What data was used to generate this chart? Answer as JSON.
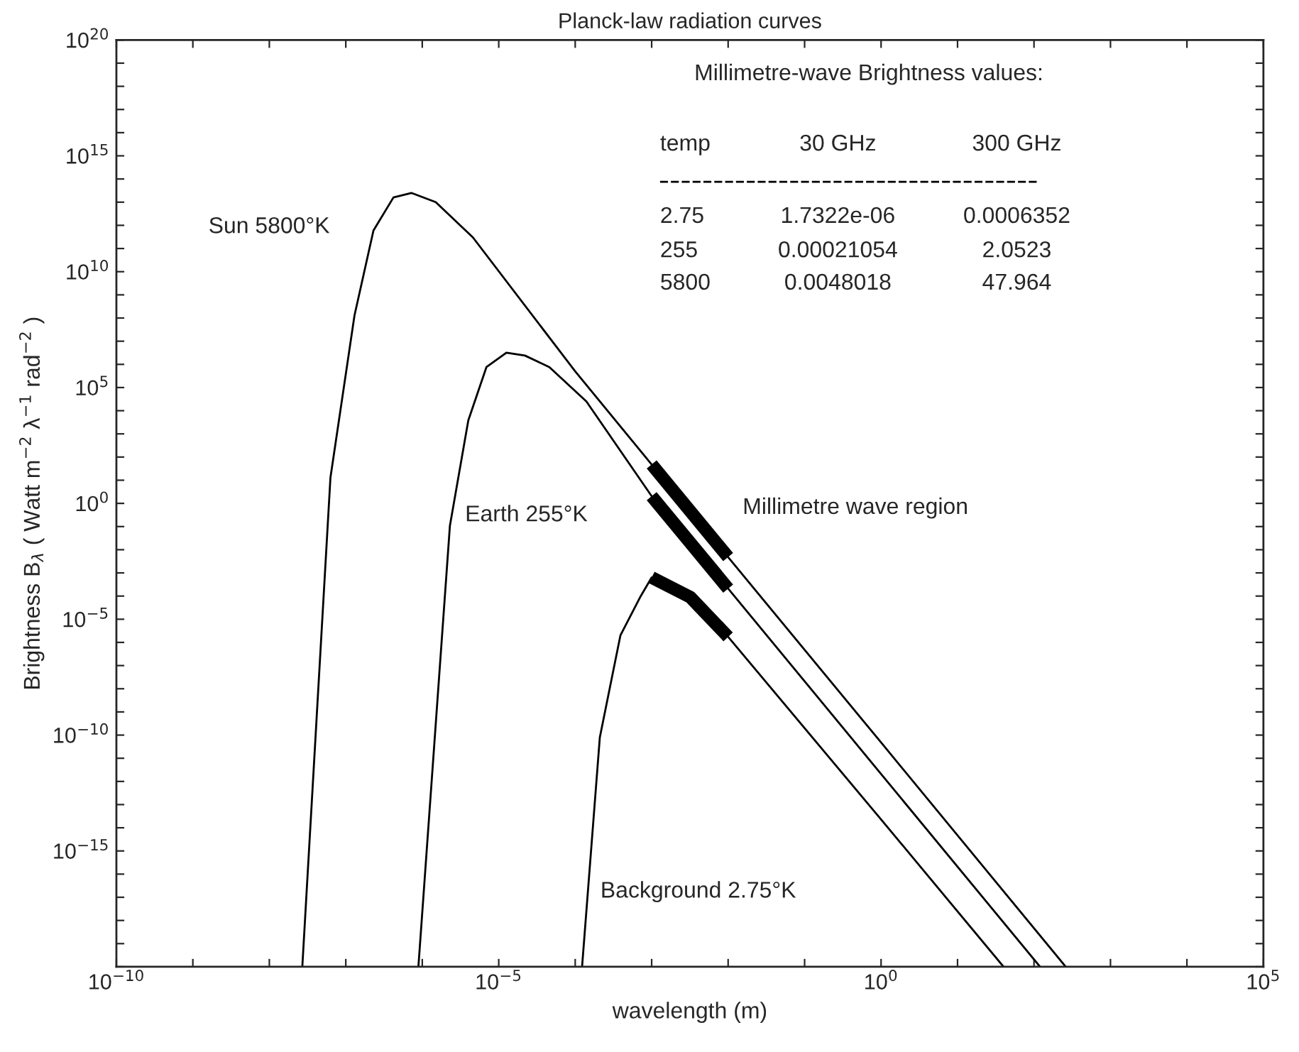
{
  "chart_data": {
    "type": "line",
    "title": "Planck-law radiation curves",
    "xlabel": "wavelength (m)",
    "ylabel": "Brightness B$_{λ}$ ( Watt m$^{−2}$ λ$^{−1}$ rad$^{−2}$ )",
    "log": "xy",
    "grid": false,
    "line_style": "solid",
    "marker": "none",
    "xlim": [
      1e-10,
      100000.0
    ],
    "ylim": [
      1e-20,
      1e+20
    ],
    "xticks": [
      {
        "value": 1e-10,
        "label": "10$^{−10}$"
      },
      {
        "value": 1e-09,
        "label": null
      },
      {
        "value": 1e-08,
        "label": null
      },
      {
        "value": 1e-07,
        "label": null
      },
      {
        "value": 1e-06,
        "label": null
      },
      {
        "value": 1e-05,
        "label": "10$^{−5}$"
      },
      {
        "value": 0.0001,
        "label": null
      },
      {
        "value": 0.001,
        "label": null
      },
      {
        "value": 0.01,
        "label": null
      },
      {
        "value": 0.1,
        "label": null
      },
      {
        "value": 1,
        "label": "10$^{0}$"
      },
      {
        "value": 10,
        "label": null
      },
      {
        "value": 100,
        "label": null
      },
      {
        "value": 1000,
        "label": null
      },
      {
        "value": 10000,
        "label": null
      },
      {
        "value": 100000,
        "label": "10$^{5}$"
      }
    ],
    "yticks": [
      {
        "value": 1e-20,
        "label": null
      },
      {
        "value": 1e-19,
        "label": null
      },
      {
        "value": 1e-18,
        "label": null
      },
      {
        "value": 1e-17,
        "label": null
      },
      {
        "value": 1e-16,
        "label": null
      },
      {
        "value": 1e-15,
        "label": "10$^{−15}$"
      },
      {
        "value": 1e-14,
        "label": null
      },
      {
        "value": 1e-13,
        "label": null
      },
      {
        "value": 1e-12,
        "label": null
      },
      {
        "value": 1e-11,
        "label": null
      },
      {
        "value": 1e-10,
        "label": "10$^{−10}$"
      },
      {
        "value": 1e-09,
        "label": null
      },
      {
        "value": 1e-08,
        "label": null
      },
      {
        "value": 1e-07,
        "label": null
      },
      {
        "value": 1e-06,
        "label": null
      },
      {
        "value": 1e-05,
        "label": "10$^{−5}$"
      },
      {
        "value": 0.0001,
        "label": null
      },
      {
        "value": 0.001,
        "label": null
      },
      {
        "value": 0.01,
        "label": null
      },
      {
        "value": 0.1,
        "label": null
      },
      {
        "value": 1,
        "label": "10$^{0}$"
      },
      {
        "value": 10,
        "label": null
      },
      {
        "value": 100,
        "label": null
      },
      {
        "value": 1000,
        "label": null
      },
      {
        "value": 10000,
        "label": null
      },
      {
        "value": 100000,
        "label": "10$^{5}$"
      },
      {
        "value": 1000000.0,
        "label": null
      },
      {
        "value": 10000000.0,
        "label": null
      },
      {
        "value": 100000000.0,
        "label": null
      },
      {
        "value": 1000000000.0,
        "label": null
      },
      {
        "value": 10000000000.0,
        "label": "10$^{10}$"
      },
      {
        "value": 100000000000.0,
        "label": null
      },
      {
        "value": 1000000000000.0,
        "label": null
      },
      {
        "value": 10000000000000.0,
        "label": null
      },
      {
        "value": 100000000000000.0,
        "label": null
      },
      {
        "value": 1000000000000000.0,
        "label": "10$^{15}$"
      },
      {
        "value": 1e+16,
        "label": null
      },
      {
        "value": 1e+17,
        "label": null
      },
      {
        "value": 1e+18,
        "label": null
      },
      {
        "value": 1e+19,
        "label": null
      },
      {
        "value": 1e+20,
        "label": "10$^{20}$"
      }
    ],
    "series": [
      {
        "name": "Sun 5800°K",
        "color": "#000000",
        "x": [
          2.7e-08,
          6.3e-08,
          1.3e-07,
          2.3e-07,
          4.2e-07,
          7.2e-07,
          1.5e-06,
          4.6e-06,
          0.0001,
          0.001,
          0.01,
          1,
          260
        ],
        "values": [
          1e-20,
          13,
          130000000.0,
          600000000000.0,
          16000000000000.0,
          25000000000000.0,
          10000000000000.0,
          300000000000.0,
          500000.0,
          47.964,
          0.0048018,
          4.8e-11,
          1e-20
        ]
      },
      {
        "name": "Earth 255°K",
        "color": "#000000",
        "x": [
          8.9e-07,
          2.3e-06,
          4e-06,
          6.9e-06,
          1.26e-05,
          2.2e-05,
          4.6e-05,
          0.00014,
          0.001,
          0.01,
          1,
          120
        ],
        "values": [
          1e-20,
          0.11,
          3800,
          760000.0,
          3200000.0,
          2400000.0,
          760000.0,
          25000.0,
          2.0523,
          0.00021054,
          2.1e-12,
          1e-20
        ]
      },
      {
        "name": "Background 2.75°K",
        "color": "#000000",
        "x": [
          0.000123,
          0.00021,
          0.00039,
          0.00072,
          0.001,
          0.0032,
          0.01,
          1,
          40
        ],
        "values": [
          1e-20,
          8e-11,
          2e-06,
          0.0001,
          0.0006352,
          9e-05,
          1.7322e-06,
          2.3e-14,
          1e-20
        ]
      },
      {
        "color": "#000000",
        "x": [
          0.001,
          0.01
        ],
        "values": [
          47.964,
          0.0048018
        ]
      },
      {
        "color": "#000000",
        "x": [
          0.001,
          0.01
        ],
        "values": [
          2.0523,
          0.00021054
        ]
      },
      {
        "color": "#000000",
        "x": [
          0.001,
          0.0032,
          0.01
        ],
        "values": [
          0.0006352,
          9e-05,
          1.7322e-06
        ]
      }
    ],
    "annotations": [
      "Millimetre wave region",
      "Millimetre-wave Brightness values:",
      "temp",
      "30 GHz",
      "300 GHz",
      "2.75",
      "1.7322e-06",
      "0.0006352",
      "255",
      "0.00021054",
      "2.0523",
      "5800",
      "0.0048018",
      "47.964"
    ]
  }
}
